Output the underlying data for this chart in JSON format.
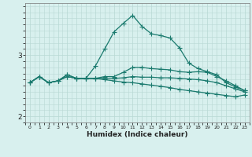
{
  "xlabel": "Humidex (Indice chaleur)",
  "x": [
    0,
    1,
    2,
    3,
    4,
    5,
    6,
    7,
    8,
    9,
    10,
    11,
    12,
    13,
    14,
    15,
    16,
    17,
    18,
    19,
    20,
    21,
    22,
    23
  ],
  "y_peaked": [
    2.55,
    2.65,
    2.55,
    2.58,
    2.68,
    2.62,
    2.62,
    2.82,
    3.1,
    3.38,
    3.52,
    3.65,
    3.47,
    3.35,
    3.32,
    3.28,
    3.12,
    2.87,
    2.78,
    2.73,
    2.68,
    2.55,
    2.48,
    2.42
  ],
  "y_midrise": [
    2.55,
    2.65,
    2.55,
    2.58,
    2.68,
    2.62,
    2.62,
    2.62,
    2.65,
    2.65,
    2.72,
    2.8,
    2.8,
    2.78,
    2.77,
    2.76,
    2.73,
    2.72,
    2.73,
    2.72,
    2.65,
    2.58,
    2.5,
    2.42
  ],
  "y_flat": [
    2.55,
    2.65,
    2.55,
    2.58,
    2.65,
    2.62,
    2.62,
    2.62,
    2.62,
    2.62,
    2.63,
    2.65,
    2.64,
    2.64,
    2.63,
    2.63,
    2.62,
    2.61,
    2.6,
    2.58,
    2.55,
    2.5,
    2.45,
    2.4
  ],
  "y_decline": [
    2.55,
    2.65,
    2.55,
    2.58,
    2.65,
    2.62,
    2.62,
    2.62,
    2.6,
    2.58,
    2.56,
    2.55,
    2.53,
    2.51,
    2.49,
    2.47,
    2.44,
    2.42,
    2.4,
    2.38,
    2.36,
    2.34,
    2.32,
    2.35
  ],
  "color": "#1a7a6e",
  "bg_color": "#d8f0ee",
  "grid_color_major": "#b8d8d4",
  "grid_color_minor": "#cce8e4",
  "ylim": [
    1.9,
    3.85
  ],
  "yticks": [
    2,
    3
  ],
  "xticks": [
    0,
    1,
    2,
    3,
    4,
    5,
    6,
    7,
    8,
    9,
    10,
    11,
    12,
    13,
    14,
    15,
    16,
    17,
    18,
    19,
    20,
    21,
    22,
    23
  ]
}
